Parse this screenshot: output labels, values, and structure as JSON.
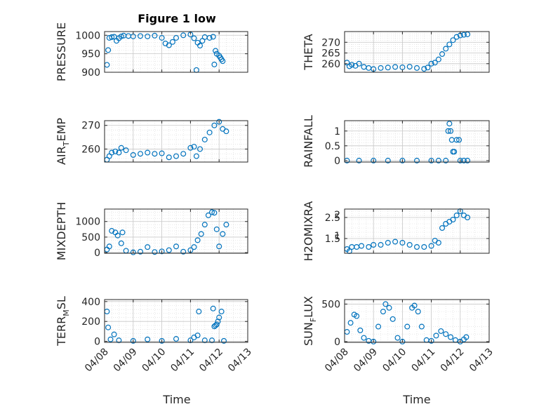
{
  "title": "Figure 1 low",
  "xlabel": "Time",
  "x_ticks": [
    "04/08",
    "04/09",
    "04/10",
    "04/11",
    "04/12",
    "04/13"
  ],
  "marker_color": "#0072BD",
  "chart_data": [
    {
      "type": "scatter",
      "ylabel_parts": [
        "PRESSURE"
      ],
      "ylim": [
        900,
        1010
      ],
      "yticks": [
        900,
        950,
        1000
      ],
      "x": [
        "04/08 02:00",
        "04/08 03:00",
        "04/08 04:00",
        "04/08 06:00",
        "04/08 08:00",
        "04/08 10:00",
        "04/08 12:00",
        "04/08 14:00",
        "04/08 16:00",
        "04/08 20:00",
        "04/09 00:00",
        "04/09 06:00",
        "04/09 12:00",
        "04/09 18:00",
        "04/10 00:00",
        "04/10 03:00",
        "04/10 06:00",
        "04/10 09:00",
        "04/10 12:00",
        "04/10 18:00",
        "04/11 00:00",
        "04/11 03:00",
        "04/11 05:00",
        "04/11 06:00",
        "04/11 08:00",
        "04/11 10:00",
        "04/11 12:00",
        "04/11 16:00",
        "04/11 19:00",
        "04/11 20:00",
        "04/11 21:00",
        "04/11 22:00",
        "04/12 00:00",
        "04/12 01:00",
        "04/12 02:00",
        "04/12 03:00"
      ],
      "y": [
        920,
        960,
        993,
        995,
        996,
        985,
        992,
        997,
        999,
        998,
        997,
        998,
        997,
        999,
        993,
        978,
        973,
        982,
        993,
        1000,
        1002,
        992,
        906,
        980,
        972,
        985,
        995,
        993,
        996,
        921,
        958,
        950,
        945,
        940,
        935,
        930
      ]
    },
    {
      "type": "scatter",
      "ylabel_parts": [
        "THETA"
      ],
      "ylim": [
        256,
        275
      ],
      "yticks": [
        260,
        265,
        270
      ],
      "x": [
        "04/08 02:00",
        "04/08 04:00",
        "04/08 06:00",
        "04/08 09:00",
        "04/08 12:00",
        "04/08 16:00",
        "04/08 20:00",
        "04/09 00:00",
        "04/09 06:00",
        "04/09 12:00",
        "04/09 18:00",
        "04/10 00:00",
        "04/10 06:00",
        "04/10 12:00",
        "04/10 18:00",
        "04/10 21:00",
        "04/11 00:00",
        "04/11 03:00",
        "04/11 06:00",
        "04/11 09:00",
        "04/11 12:00",
        "04/11 15:00",
        "04/11 18:00",
        "04/11 21:00",
        "04/12 00:00",
        "04/12 03:00",
        "04/12 06:00"
      ],
      "y": [
        260.5,
        258.8,
        259.5,
        259.0,
        260.0,
        258.5,
        258.0,
        257.5,
        258.0,
        258.2,
        258.5,
        258.3,
        258.6,
        258.0,
        257.6,
        258.2,
        260.0,
        260.5,
        262.0,
        264.5,
        267.0,
        269.0,
        271.0,
        272.5,
        273.2,
        273.5,
        273.7
      ]
    },
    {
      "type": "scatter",
      "ylabel_parts": [
        "AIR",
        "T",
        "EMP"
      ],
      "ylim": [
        254.5,
        272
      ],
      "yticks": [
        260,
        270
      ],
      "x": [
        "04/08 02:00",
        "04/08 04:00",
        "04/08 06:00",
        "04/08 09:00",
        "04/08 12:00",
        "04/08 14:00",
        "04/08 18:00",
        "04/09 00:00",
        "04/09 06:00",
        "04/09 12:00",
        "04/09 18:00",
        "04/10 00:00",
        "04/10 06:00",
        "04/10 12:00",
        "04/10 18:00",
        "04/11 00:00",
        "04/11 03:00",
        "04/11 05:00",
        "04/11 08:00",
        "04/11 12:00",
        "04/11 16:00",
        "04/11 20:00",
        "04/12 00:00",
        "04/12 03:00",
        "04/12 06:00"
      ],
      "y": [
        255.5,
        257.0,
        258.5,
        259.0,
        258.5,
        260.5,
        259.5,
        257.5,
        258.0,
        258.5,
        258.0,
        258.2,
        256.5,
        257.0,
        258.0,
        260.5,
        261.0,
        257.0,
        260.0,
        264.0,
        267.0,
        270.0,
        271.5,
        268.5,
        267.5
      ]
    },
    {
      "type": "scatter",
      "ylabel_parts": [
        "RAINFALL"
      ],
      "ylim": [
        -0.05,
        1.35
      ],
      "yticks": [
        0,
        0.5,
        1
      ],
      "x": [
        "04/08 02:00",
        "04/08 12:00",
        "04/09 00:00",
        "04/09 12:00",
        "04/10 00:00",
        "04/10 12:00",
        "04/11 00:00",
        "04/11 06:00",
        "04/11 12:00",
        "04/11 14:00",
        "04/11 15:00",
        "04/11 16:00",
        "04/11 17:00",
        "04/11 18:00",
        "04/11 19:00",
        "04/11 21:00",
        "04/11 23:00",
        "04/12 00:00",
        "04/12 03:00",
        "04/12 06:00"
      ],
      "y": [
        0,
        0,
        0,
        0,
        0,
        0,
        0,
        0,
        0,
        1.0,
        1.25,
        1.0,
        0.7,
        0.3,
        0.3,
        0.7,
        0.7,
        0,
        0,
        0
      ]
    },
    {
      "type": "scatter",
      "ylabel_parts": [
        "MIXDEPTH"
      ],
      "ylim": [
        -20,
        1400
      ],
      "yticks": [
        0,
        500,
        1000
      ],
      "x": [
        "04/08 02:00",
        "04/08 04:00",
        "04/08 06:00",
        "04/08 09:00",
        "04/08 11:00",
        "04/08 14:00",
        "04/08 15:00",
        "04/08 18:00",
        "04/09 00:00",
        "04/09 06:00",
        "04/09 12:00",
        "04/09 18:00",
        "04/10 00:00",
        "04/10 06:00",
        "04/10 12:00",
        "04/10 18:00",
        "04/11 00:00",
        "04/11 03:00",
        "04/11 06:00",
        "04/11 09:00",
        "04/11 12:00",
        "04/11 15:00",
        "04/11 18:00",
        "04/11 20:00",
        "04/11 22:00",
        "04/12 00:00",
        "04/12 03:00",
        "04/12 06:00"
      ],
      "y": [
        100,
        200,
        700,
        650,
        550,
        300,
        650,
        60,
        10,
        30,
        180,
        20,
        40,
        80,
        200,
        30,
        80,
        180,
        400,
        600,
        900,
        1200,
        1300,
        1280,
        750,
        200,
        600,
        900
      ]
    },
    {
      "type": "scatter",
      "ylabel_parts": [
        "H2OMIXRA"
      ],
      "ylim": [
        0.8,
        2.9
      ],
      "yticks": [
        1.5,
        2.5
      ],
      "yticklabels_overlap": [
        "1",
        "2"
      ],
      "x": [
        "04/08 02:00",
        "04/08 04:00",
        "04/08 06:00",
        "04/08 10:00",
        "04/08 14:00",
        "04/08 20:00",
        "04/09 00:00",
        "04/09 06:00",
        "04/09 12:00",
        "04/09 18:00",
        "04/10 00:00",
        "04/10 06:00",
        "04/10 12:00",
        "04/10 18:00",
        "04/11 00:00",
        "04/11 03:00",
        "04/11 06:00",
        "04/11 09:00",
        "04/11 12:00",
        "04/11 15:00",
        "04/11 18:00",
        "04/11 21:00",
        "04/12 00:00",
        "04/12 03:00",
        "04/12 06:00"
      ],
      "y": [
        1.0,
        0.9,
        1.1,
        1.1,
        1.15,
        1.1,
        1.2,
        1.2,
        1.3,
        1.35,
        1.3,
        1.2,
        1.1,
        1.1,
        1.15,
        1.4,
        1.3,
        2.0,
        2.2,
        2.3,
        2.4,
        2.6,
        2.8,
        2.6,
        2.5
      ]
    },
    {
      "type": "scatter",
      "ylabel_parts": [
        "TERR",
        "M",
        "SL"
      ],
      "ylim": [
        -10,
        420
      ],
      "yticks": [
        0,
        200,
        400
      ],
      "x": [
        "04/08 02:00",
        "04/08 03:00",
        "04/08 05:00",
        "04/08 08:00",
        "04/08 12:00",
        "04/09 00:00",
        "04/09 12:00",
        "04/10 00:00",
        "04/10 12:00",
        "04/11 00:00",
        "04/11 03:00",
        "04/11 06:00",
        "04/11 07:00",
        "04/11 12:00",
        "04/11 18:00",
        "04/11 19:00",
        "04/11 20:00",
        "04/11 21:00",
        "04/11 22:00",
        "04/11 23:00",
        "04/12 00:00",
        "04/12 02:00",
        "04/12 04:00"
      ],
      "y": [
        300,
        140,
        20,
        70,
        10,
        5,
        20,
        5,
        25,
        10,
        40,
        60,
        300,
        10,
        10,
        330,
        150,
        160,
        170,
        200,
        240,
        300,
        5
      ]
    },
    {
      "type": "scatter",
      "ylabel_parts": [
        "SUN",
        "F",
        "LUX"
      ],
      "ylim": [
        -10,
        560
      ],
      "yticks": [
        0,
        500
      ],
      "x": [
        "04/08 02:00",
        "04/08 05:00",
        "04/08 08:00",
        "04/08 10:00",
        "04/08 13:00",
        "04/08 16:00",
        "04/08 20:00",
        "04/09 00:00",
        "04/09 04:00",
        "04/09 08:00",
        "04/09 10:00",
        "04/09 13:00",
        "04/09 16:00",
        "04/09 20:00",
        "04/10 00:00",
        "04/10 04:00",
        "04/10 08:00",
        "04/10 10:00",
        "04/10 13:00",
        "04/10 16:00",
        "04/10 20:00",
        "04/11 00:00",
        "04/11 04:00",
        "04/11 08:00",
        "04/11 12:00",
        "04/11 16:00",
        "04/11 20:00",
        "04/12 00:00",
        "04/12 03:00",
        "04/12 05:00"
      ],
      "y": [
        130,
        250,
        360,
        340,
        150,
        50,
        10,
        0,
        200,
        400,
        500,
        450,
        300,
        50,
        0,
        200,
        450,
        480,
        400,
        200,
        20,
        10,
        80,
        140,
        100,
        60,
        20,
        0,
        30,
        60
      ]
    }
  ]
}
